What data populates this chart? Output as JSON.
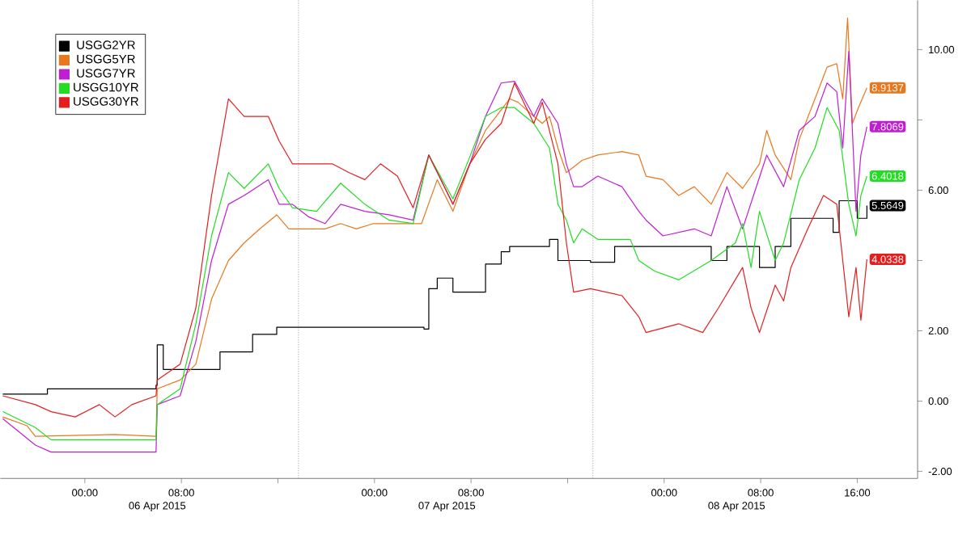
{
  "chart_data": {
    "type": "line",
    "xlim": [
      "2015-04-05T17:00",
      "2015-04-08T21:00"
    ],
    "ylim": [
      -2.2,
      11.4
    ],
    "xticks": [
      {
        "value": "2015-04-06T00:00",
        "label": "00:00"
      },
      {
        "value": "2015-04-06T08:00",
        "label": "08:00"
      },
      {
        "value": "2015-04-06T16:00",
        "label": null
      },
      {
        "value": "2015-04-07T00:00",
        "label": "00:00"
      },
      {
        "value": "2015-04-07T08:00",
        "label": "08:00"
      },
      {
        "value": "2015-04-07T16:00",
        "label": null
      },
      {
        "value": "2015-04-08T00:00",
        "label": "00:00"
      },
      {
        "value": "2015-04-08T08:00",
        "label": "08:00"
      },
      {
        "value": "2015-04-08T16:00",
        "label": "16:00"
      }
    ],
    "yticks": [
      {
        "value": -2,
        "label": "-2.00"
      },
      {
        "value": 0,
        "label": "0.00"
      },
      {
        "value": 2,
        "label": "2.00"
      },
      {
        "value": 4,
        "label": null
      },
      {
        "value": 6,
        "label": "6.00"
      },
      {
        "value": 8,
        "label": null
      },
      {
        "value": 10,
        "label": "10.00"
      }
    ],
    "legend": "top left",
    "annotations": [
      "06 Apr 2015",
      "07 Apr 2015",
      "08 Apr 2015"
    ],
    "ref_lines": [
      {
        "axis": "x",
        "value": "2015-04-06T17:42",
        "color": "#999999",
        "line_style": "dotted"
      },
      {
        "axis": "x",
        "value": "2015-04-07T18:06",
        "color": "#999999",
        "line_style": "dotted"
      }
    ],
    "series": [
      {
        "name": "USGG2YR",
        "type": "step",
        "color": "#000000",
        "x": [
          "2015-04-05T17:12",
          "2015-04-05T20:54",
          "2015-04-06T05:54",
          "2015-04-06T06:00",
          "2015-04-06T06:30",
          "2015-04-06T11:12",
          "2015-04-06T13:54",
          "2015-04-06T15:54",
          "2015-04-07T04:06",
          "2015-04-07T04:30",
          "2015-04-07T05:12",
          "2015-04-07T06:30",
          "2015-04-07T09:12",
          "2015-04-07T10:30",
          "2015-04-07T11:12",
          "2015-04-07T14:30",
          "2015-04-07T15:12",
          "2015-04-07T17:54",
          "2015-04-07T19:54",
          "2015-04-08T03:54",
          "2015-04-08T05:12",
          "2015-04-08T07:54",
          "2015-04-08T09:12",
          "2015-04-08T10:30",
          "2015-04-08T14:00",
          "2015-04-08T14:30",
          "2015-04-08T16:00",
          "2015-04-08T16:48"
        ],
        "values": [
          0.2,
          0.35,
          0.45,
          1.6,
          0.9,
          1.4,
          1.9,
          2.1,
          2.05,
          3.2,
          3.5,
          3.1,
          3.9,
          4.25,
          4.4,
          4.6,
          4.0,
          3.95,
          4.4,
          4.0,
          4.4,
          3.8,
          4.4,
          5.2,
          4.8,
          5.7,
          5.2,
          5.5649
        ],
        "value_labels": [
          null,
          null,
          null,
          null,
          null,
          null,
          null,
          null,
          null,
          null,
          null,
          null,
          null,
          null,
          null,
          null,
          null,
          null,
          null,
          null,
          null,
          null,
          null,
          null,
          null,
          null,
          null,
          "5.5649"
        ]
      },
      {
        "name": "USGG5YR",
        "color": "#e8781e",
        "x": [
          "2015-04-05T17:12",
          "2015-04-05T19:12",
          "2015-04-05T19:54",
          "2015-04-06T02:30",
          "2015-04-06T05:54",
          "2015-04-06T06:00",
          "2015-04-06T07:54",
          "2015-04-06T09:12",
          "2015-04-06T10:30",
          "2015-04-06T11:54",
          "2015-04-06T13:12",
          "2015-04-06T14:30",
          "2015-04-06T15:54",
          "2015-04-06T16:54",
          "2015-04-06T19:54",
          "2015-04-06T21:12",
          "2015-04-06T22:30",
          "2015-04-06T23:54",
          "2015-04-07T03:54",
          "2015-04-07T05:12",
          "2015-04-07T06:30",
          "2015-04-07T07:54",
          "2015-04-07T09:12",
          "2015-04-07T11:12",
          "2015-04-07T11:54",
          "2015-04-07T13:12",
          "2015-04-07T13:54",
          "2015-04-07T14:30",
          "2015-04-07T15:12",
          "2015-04-07T15:54",
          "2015-04-07T17:12",
          "2015-04-07T18:30",
          "2015-04-07T20:30",
          "2015-04-07T21:54",
          "2015-04-07T22:30",
          "2015-04-07T23:54",
          "2015-04-08T01:12",
          "2015-04-08T02:30",
          "2015-04-08T03:54",
          "2015-04-08T05:12",
          "2015-04-08T06:30",
          "2015-04-08T07:54",
          "2015-04-08T08:30",
          "2015-04-08T09:12",
          "2015-04-08T10:30",
          "2015-04-08T11:12",
          "2015-04-08T12:30",
          "2015-04-08T13:30",
          "2015-04-08T14:18",
          "2015-04-08T14:48",
          "2015-04-08T15:12",
          "2015-04-08T15:36",
          "2015-04-08T16:06",
          "2015-04-08T16:48"
        ],
        "values": [
          -0.45,
          -0.7,
          -1.0,
          -0.95,
          -1.0,
          0.35,
          0.6,
          1.05,
          2.9,
          4.0,
          4.5,
          4.9,
          5.3,
          4.9,
          4.9,
          5.05,
          4.9,
          5.05,
          5.05,
          6.3,
          5.4,
          6.75,
          7.7,
          8.6,
          8.5,
          8.1,
          7.9,
          8.1,
          7.2,
          6.5,
          6.85,
          7.0,
          7.1,
          7.0,
          6.4,
          6.3,
          5.85,
          6.1,
          5.6,
          6.5,
          6.05,
          6.75,
          7.7,
          7.0,
          6.3,
          7.45,
          8.6,
          9.5,
          9.6,
          8.6,
          10.9,
          7.9,
          8.35,
          8.9137
        ],
        "value_labels": [
          null,
          null,
          null,
          null,
          null,
          null,
          null,
          null,
          null,
          null,
          null,
          null,
          null,
          null,
          null,
          null,
          null,
          null,
          null,
          null,
          null,
          null,
          null,
          null,
          null,
          null,
          null,
          null,
          null,
          null,
          null,
          null,
          null,
          null,
          null,
          null,
          null,
          null,
          null,
          null,
          null,
          null,
          null,
          null,
          null,
          null,
          null,
          null,
          null,
          null,
          null,
          null,
          null,
          "8.9137"
        ]
      },
      {
        "name": "USGG7YR",
        "color": "#c01ed2",
        "x": [
          "2015-04-05T17:12",
          "2015-04-05T19:54",
          "2015-04-05T21:12",
          "2015-04-06T05:54",
          "2015-04-06T06:00",
          "2015-04-06T07:54",
          "2015-04-06T09:12",
          "2015-04-06T10:30",
          "2015-04-06T11:54",
          "2015-04-06T13:12",
          "2015-04-06T15:12",
          "2015-04-06T16:06",
          "2015-04-06T17:12",
          "2015-04-06T18:30",
          "2015-04-06T19:54",
          "2015-04-06T21:12",
          "2015-04-06T23:12",
          "2015-04-07T01:12",
          "2015-04-07T03:12",
          "2015-04-07T04:30",
          "2015-04-07T06:30",
          "2015-04-07T07:54",
          "2015-04-07T09:12",
          "2015-04-07T10:30",
          "2015-04-07T11:36",
          "2015-04-07T13:12",
          "2015-04-07T13:54",
          "2015-04-07T15:12",
          "2015-04-07T15:54",
          "2015-04-07T16:30",
          "2015-04-07T17:12",
          "2015-04-07T18:30",
          "2015-04-07T20:30",
          "2015-04-07T21:54",
          "2015-04-07T22:30",
          "2015-04-07T23:54",
          "2015-04-08T02:30",
          "2015-04-08T03:54",
          "2015-04-08T05:12",
          "2015-04-08T06:30",
          "2015-04-08T08:30",
          "2015-04-08T09:54",
          "2015-04-08T11:12",
          "2015-04-08T12:30",
          "2015-04-08T13:30",
          "2015-04-08T14:18",
          "2015-04-08T14:48",
          "2015-04-08T15:18",
          "2015-04-08T15:54",
          "2015-04-08T16:18",
          "2015-04-08T16:48"
        ],
        "values": [
          -0.5,
          -1.25,
          -1.45,
          -1.45,
          -0.1,
          0.15,
          1.7,
          4.0,
          5.6,
          5.85,
          6.3,
          5.6,
          5.6,
          5.25,
          5.05,
          5.6,
          5.4,
          5.3,
          5.15,
          7.0,
          5.6,
          6.75,
          8.1,
          9.05,
          9.1,
          8.1,
          8.6,
          7.9,
          6.75,
          6.1,
          6.1,
          6.4,
          6.1,
          5.4,
          5.15,
          4.7,
          4.9,
          4.7,
          6.1,
          4.9,
          7.0,
          6.1,
          7.7,
          8.1,
          9.05,
          8.8,
          7.2,
          9.95,
          5.4,
          7.0,
          7.8069
        ],
        "value_labels": [
          null,
          null,
          null,
          null,
          null,
          null,
          null,
          null,
          null,
          null,
          null,
          null,
          null,
          null,
          null,
          null,
          null,
          null,
          null,
          null,
          null,
          null,
          null,
          null,
          null,
          null,
          null,
          null,
          null,
          null,
          null,
          null,
          null,
          null,
          null,
          null,
          null,
          null,
          null,
          null,
          null,
          null,
          null,
          null,
          null,
          null,
          null,
          null,
          null,
          null,
          "7.8069"
        ]
      },
      {
        "name": "USGG10YR",
        "color": "#22dd22",
        "x": [
          "2015-04-05T17:12",
          "2015-04-05T19:54",
          "2015-04-05T21:12",
          "2015-04-06T05:54",
          "2015-04-06T06:00",
          "2015-04-06T07:54",
          "2015-04-06T09:12",
          "2015-04-06T10:30",
          "2015-04-06T11:54",
          "2015-04-06T13:12",
          "2015-04-06T15:12",
          "2015-04-06T16:06",
          "2015-04-06T17:12",
          "2015-04-06T19:12",
          "2015-04-06T21:12",
          "2015-04-06T23:12",
          "2015-04-07T01:12",
          "2015-04-07T03:12",
          "2015-04-07T04:30",
          "2015-04-07T06:30",
          "2015-04-07T07:54",
          "2015-04-07T09:12",
          "2015-04-07T10:30",
          "2015-04-07T11:36",
          "2015-04-07T13:12",
          "2015-04-07T14:30",
          "2015-04-07T15:12",
          "2015-04-07T15:54",
          "2015-04-07T16:30",
          "2015-04-07T17:12",
          "2015-04-07T18:30",
          "2015-04-07T21:12",
          "2015-04-07T21:54",
          "2015-04-07T23:12",
          "2015-04-08T01:12",
          "2015-04-08T03:54",
          "2015-04-08T05:54",
          "2015-04-08T06:30",
          "2015-04-08T07:12",
          "2015-04-08T07:54",
          "2015-04-08T09:12",
          "2015-04-08T09:54",
          "2015-04-08T11:12",
          "2015-04-08T12:30",
          "2015-04-08T13:30",
          "2015-04-08T14:30",
          "2015-04-08T15:18",
          "2015-04-08T15:54",
          "2015-04-08T16:18",
          "2015-04-08T16:48"
        ],
        "values": [
          -0.3,
          -0.75,
          -1.1,
          -1.1,
          -0.1,
          0.35,
          2.2,
          4.7,
          6.5,
          6.05,
          6.75,
          6.05,
          5.5,
          5.4,
          6.2,
          5.6,
          5.15,
          5.05,
          7.0,
          5.75,
          6.95,
          8.1,
          8.35,
          8.35,
          7.9,
          7.2,
          5.6,
          5.15,
          4.5,
          4.9,
          4.6,
          4.6,
          4.0,
          3.7,
          3.45,
          4.0,
          4.5,
          5.05,
          3.8,
          5.4,
          4.0,
          4.5,
          6.3,
          7.2,
          8.35,
          7.7,
          5.6,
          4.7,
          5.85,
          6.4018
        ],
        "value_labels": [
          null,
          null,
          null,
          null,
          null,
          null,
          null,
          null,
          null,
          null,
          null,
          null,
          null,
          null,
          null,
          null,
          null,
          null,
          null,
          null,
          null,
          null,
          null,
          null,
          null,
          null,
          null,
          null,
          null,
          null,
          null,
          null,
          null,
          null,
          null,
          null,
          null,
          null,
          null,
          null,
          null,
          null,
          null,
          null,
          null,
          null,
          null,
          null,
          null,
          "6.4018"
        ]
      },
      {
        "name": "USGG30YR",
        "color": "#e41e1e",
        "x": [
          "2015-04-05T17:12",
          "2015-04-05T19:54",
          "2015-04-05T21:12",
          "2015-04-05T23:12",
          "2015-04-06T01:12",
          "2015-04-06T02:30",
          "2015-04-06T03:54",
          "2015-04-06T05:54",
          "2015-04-06T06:00",
          "2015-04-06T07:54",
          "2015-04-06T09:12",
          "2015-04-06T10:30",
          "2015-04-06T11:54",
          "2015-04-06T13:12",
          "2015-04-06T15:12",
          "2015-04-06T16:06",
          "2015-04-06T17:12",
          "2015-04-06T20:30",
          "2015-04-06T21:54",
          "2015-04-06T23:12",
          "2015-04-07T00:30",
          "2015-04-07T01:54",
          "2015-04-07T03:12",
          "2015-04-07T04:30",
          "2015-04-07T06:30",
          "2015-04-07T07:54",
          "2015-04-07T09:12",
          "2015-04-07T10:30",
          "2015-04-07T11:36",
          "2015-04-07T13:12",
          "2015-04-07T13:54",
          "2015-04-07T15:12",
          "2015-04-07T15:54",
          "2015-04-07T16:30",
          "2015-04-07T17:54",
          "2015-04-07T20:30",
          "2015-04-07T21:54",
          "2015-04-07T22:30",
          "2015-04-08T01:12",
          "2015-04-08T03:12",
          "2015-04-08T04:30",
          "2015-04-08T06:30",
          "2015-04-08T07:12",
          "2015-04-08T07:54",
          "2015-04-08T09:12",
          "2015-04-08T09:54",
          "2015-04-08T10:30",
          "2015-04-08T11:54",
          "2015-04-08T13:12",
          "2015-04-08T14:18",
          "2015-04-08T14:48",
          "2015-04-08T15:18",
          "2015-04-08T15:54",
          "2015-04-08T16:18",
          "2015-04-08T16:48"
        ],
        "values": [
          0.15,
          -0.1,
          -0.3,
          -0.45,
          -0.1,
          -0.45,
          -0.1,
          0.15,
          0.6,
          1.05,
          2.65,
          5.85,
          8.6,
          8.1,
          8.1,
          7.4,
          6.75,
          6.75,
          6.5,
          6.3,
          6.75,
          6.4,
          5.5,
          7.0,
          5.6,
          6.75,
          7.45,
          7.9,
          9.05,
          7.9,
          8.5,
          6.75,
          4.5,
          3.1,
          3.2,
          3.0,
          2.4,
          1.95,
          2.2,
          1.95,
          2.65,
          3.8,
          2.65,
          1.95,
          3.3,
          2.85,
          3.8,
          4.9,
          5.85,
          5.6,
          4.0,
          2.4,
          3.8,
          2.3,
          4.0338
        ],
        "value_labels": [
          null,
          null,
          null,
          null,
          null,
          null,
          null,
          null,
          null,
          null,
          null,
          null,
          null,
          null,
          null,
          null,
          null,
          null,
          null,
          null,
          null,
          null,
          null,
          null,
          null,
          null,
          null,
          null,
          null,
          null,
          null,
          null,
          null,
          null,
          null,
          null,
          null,
          null,
          null,
          null,
          null,
          null,
          null,
          null,
          null,
          null,
          null,
          null,
          null,
          null,
          null,
          null,
          null,
          null,
          "4.0338"
        ]
      }
    ]
  }
}
